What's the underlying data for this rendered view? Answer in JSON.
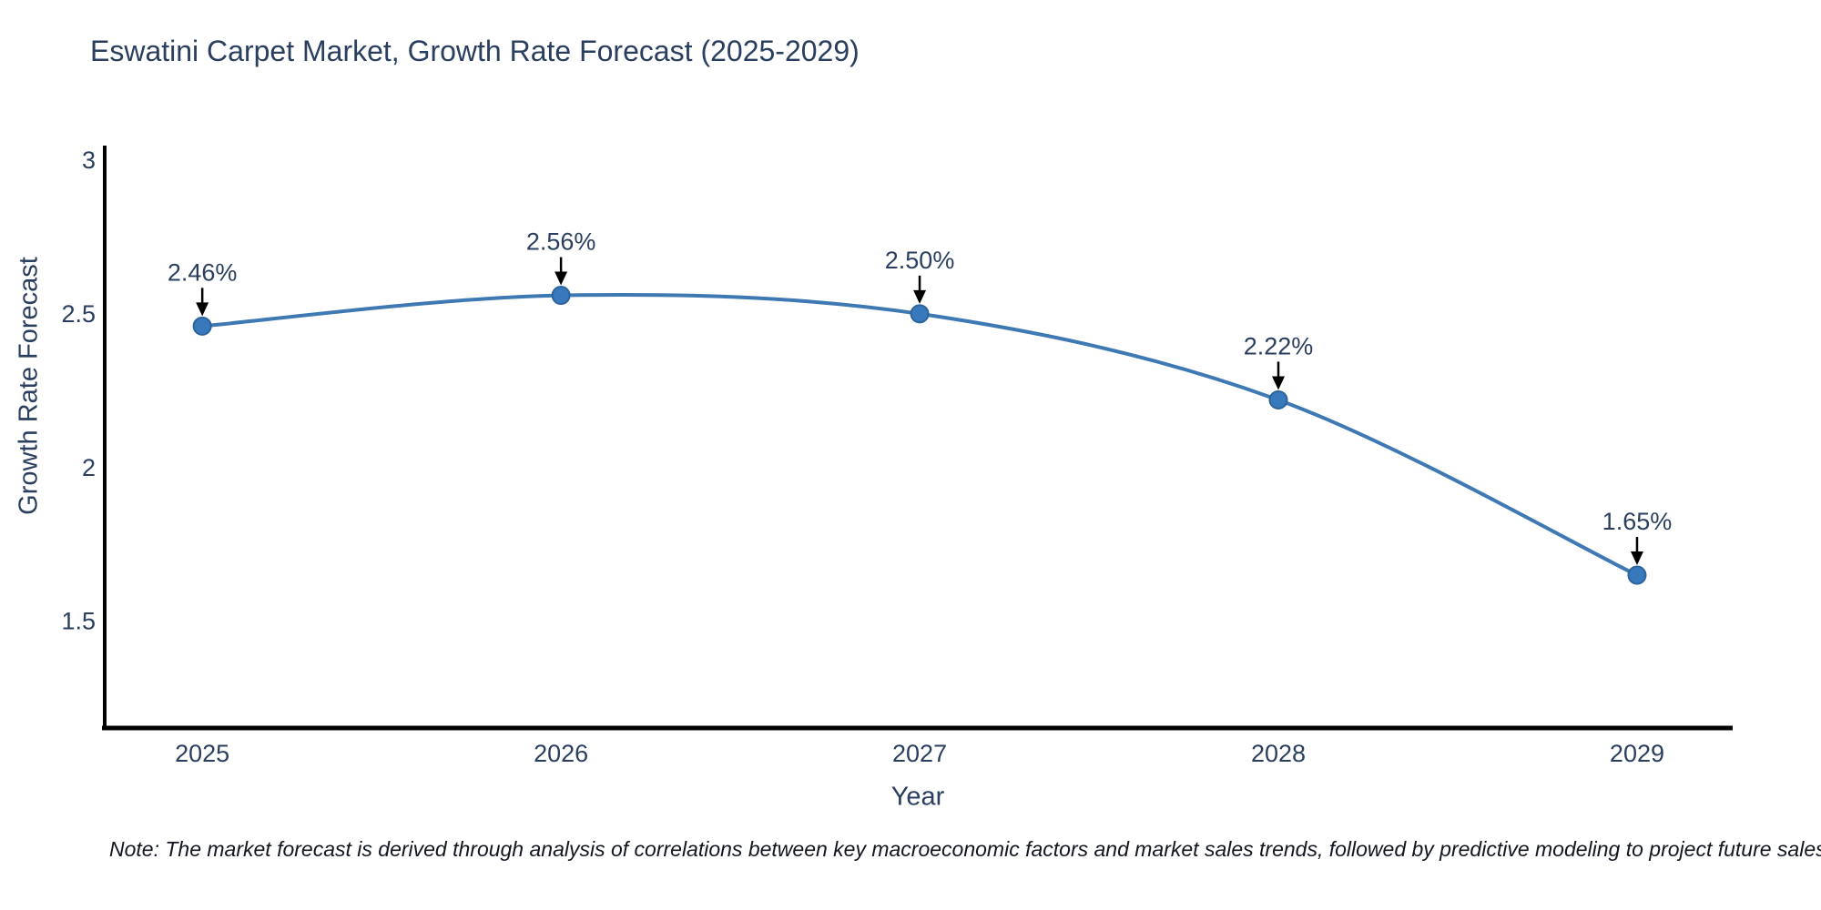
{
  "title": "Eswatini Carpet Market, Growth Rate Forecast (2025-2029)",
  "note": "Note: The market forecast is derived through analysis of correlations between key macroeconomic factors and market sales trends, followed by predictive modeling to project future sales",
  "colors": {
    "title_text": "#2a3f5f",
    "tick_text": "#2a3f5f",
    "annotation_text": "#2a3f5f",
    "line": "#3e79b4",
    "marker_fill": "#3879bd",
    "marker_edge": "#2e6399",
    "axis_line": "#000000",
    "arrow": "#000000",
    "background": "#ffffff"
  },
  "chart_data": {
    "type": "line",
    "title": "Eswatini Carpet Market, Growth Rate Forecast (2025-2029)",
    "x": [
      2025,
      2026,
      2027,
      2028,
      2029
    ],
    "series": [
      {
        "name": "Growth Rate Forecast",
        "values": [
          2.46,
          2.56,
          2.5,
          2.22,
          1.65
        ]
      }
    ],
    "data_labels": [
      "2.46%",
      "2.56%",
      "2.50%",
      "2.22%",
      "1.65%"
    ],
    "xlabel": "Year",
    "ylabel": "Growth Rate Forecast",
    "xticks": [
      "2025",
      "2026",
      "2027",
      "2028",
      "2029"
    ],
    "yticks": [
      3,
      2.5,
      2,
      1.5
    ],
    "xlim": [
      2024.728,
      2029.259
    ],
    "ylim": [
      1.153,
      3.047
    ],
    "line_shape": "spline",
    "grid": false,
    "legend": false,
    "annotations": "value labels with downward arrows above each point"
  }
}
